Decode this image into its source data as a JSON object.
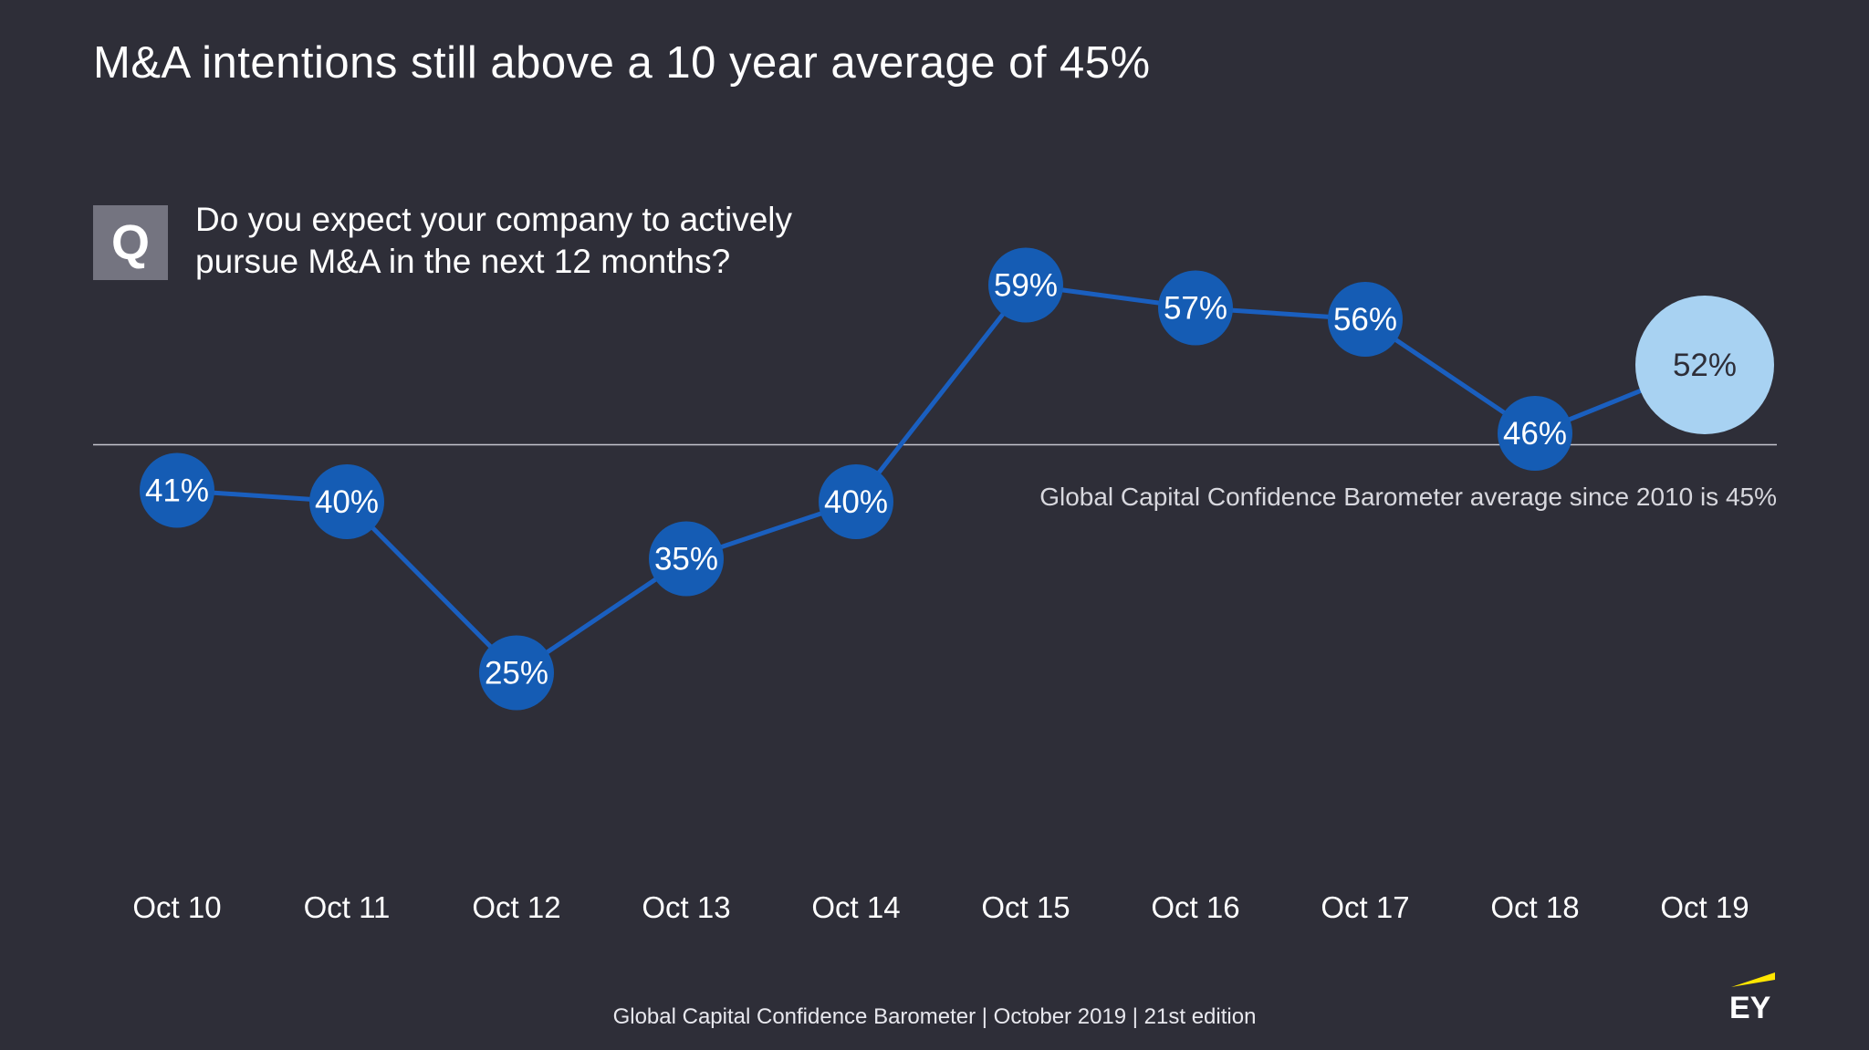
{
  "title": "M&A intentions still above a 10 year average of 45%",
  "question": {
    "badge": "Q",
    "text": "Do you expect your company to actively\npursue M&A in the next 12 months?"
  },
  "average_note": "Global Capital Confidence Barometer average since 2010 is 45%",
  "footer": "Global Capital Confidence Barometer | October 2019 | 21st edition",
  "logo_text": "EY",
  "colors": {
    "background": "#2e2e38",
    "series": "#1a5fbf",
    "marker": "#155cb4",
    "highlight_marker": "#a8d2f2",
    "average_line": "#c4c4cd",
    "logo_accent": "#ffe600"
  },
  "chart_data": {
    "type": "line",
    "categories": [
      "Oct 10",
      "Oct 11",
      "Oct 12",
      "Oct 13",
      "Oct 14",
      "Oct 15",
      "Oct 16",
      "Oct 17",
      "Oct 18",
      "Oct 19"
    ],
    "values": [
      41,
      40,
      25,
      35,
      40,
      59,
      57,
      56,
      46,
      52
    ],
    "data_labels": [
      "41%",
      "40%",
      "25%",
      "35%",
      "40%",
      "59%",
      "57%",
      "56%",
      "46%",
      "52%"
    ],
    "highlight_index": 9,
    "reference_line": {
      "value": 45
    },
    "ylim": [
      20,
      62
    ],
    "grid": false,
    "legend": "none"
  }
}
